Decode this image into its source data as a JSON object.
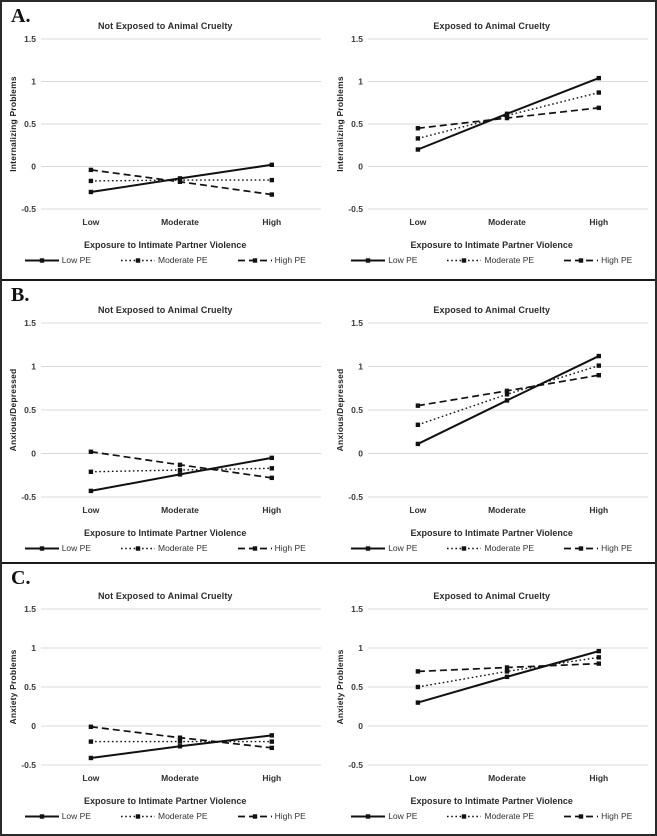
{
  "figure": {
    "sections": [
      {
        "label": "A."
      },
      {
        "label": "B."
      },
      {
        "label": "C."
      }
    ],
    "colors": {
      "line": "#111111",
      "grid": "#d9d9d9",
      "text": "#2b2b2b",
      "border": "#1a1a1a"
    },
    "legend_styles": [
      "solid",
      "dotted",
      "dashed"
    ]
  },
  "chart_data": [
    {
      "type": "line",
      "panel": "A.",
      "title": "Not Exposed to Animal Cruelty",
      "ylabel": "Internalizing Problems",
      "xlabel": "Exposure to Intimate Partner Violence",
      "categories": [
        "Low",
        "Moderate",
        "High"
      ],
      "ylim": [
        -0.5,
        1.5
      ],
      "yticks": [
        1.5,
        1,
        0.5,
        0,
        -0.5
      ],
      "grid": "horizontal",
      "legend_position": "bottom",
      "series": [
        {
          "name": "Low PE",
          "style": "solid",
          "values": [
            -0.3,
            -0.14,
            0.02
          ]
        },
        {
          "name": "Moderate PE",
          "style": "dotted",
          "values": [
            -0.17,
            -0.16,
            -0.16
          ]
        },
        {
          "name": "High PE",
          "style": "dashed",
          "values": [
            -0.04,
            -0.18,
            -0.33
          ]
        }
      ]
    },
    {
      "type": "line",
      "panel": "A.",
      "title": "Exposed to Animal Cruelty",
      "ylabel": "Internalizing Problems",
      "xlabel": "Exposure to Intimate Partner Violence",
      "categories": [
        "Low",
        "Moderate",
        "High"
      ],
      "ylim": [
        -0.5,
        1.5
      ],
      "yticks": [
        1.5,
        1,
        0.5,
        0,
        -0.5
      ],
      "grid": "horizontal",
      "legend_position": "bottom",
      "series": [
        {
          "name": "Low PE",
          "style": "solid",
          "values": [
            0.2,
            0.62,
            1.04
          ]
        },
        {
          "name": "Moderate PE",
          "style": "dotted",
          "values": [
            0.33,
            0.6,
            0.87
          ]
        },
        {
          "name": "High PE",
          "style": "dashed",
          "values": [
            0.45,
            0.57,
            0.69
          ]
        }
      ]
    },
    {
      "type": "line",
      "panel": "B.",
      "title": "Not Exposed to Animal Cruelty",
      "ylabel": "Anxious/Depressed",
      "xlabel": "Exposure to Intimate Partner Violence",
      "categories": [
        "Low",
        "Moderate",
        "High"
      ],
      "ylim": [
        -0.5,
        1.5
      ],
      "yticks": [
        1.5,
        1,
        0.5,
        0,
        -0.5
      ],
      "grid": "horizontal",
      "legend_position": "bottom",
      "series": [
        {
          "name": "Low PE",
          "style": "solid",
          "values": [
            -0.43,
            -0.24,
            -0.05
          ]
        },
        {
          "name": "Moderate PE",
          "style": "dotted",
          "values": [
            -0.21,
            -0.19,
            -0.17
          ]
        },
        {
          "name": "High PE",
          "style": "dashed",
          "values": [
            0.02,
            -0.13,
            -0.28
          ]
        }
      ]
    },
    {
      "type": "line",
      "panel": "B.",
      "title": "Exposed to Animal Cruelty",
      "ylabel": "Anxious/Depressed",
      "xlabel": "Exposure to Intimate Partner Violence",
      "categories": [
        "Low",
        "Moderate",
        "High"
      ],
      "ylim": [
        -0.5,
        1.5
      ],
      "yticks": [
        1.5,
        1,
        0.5,
        0,
        -0.5
      ],
      "grid": "horizontal",
      "legend_position": "bottom",
      "series": [
        {
          "name": "Low PE",
          "style": "solid",
          "values": [
            0.11,
            0.61,
            1.12
          ]
        },
        {
          "name": "Moderate PE",
          "style": "dotted",
          "values": [
            0.33,
            0.68,
            1.01
          ]
        },
        {
          "name": "High PE",
          "style": "dashed",
          "values": [
            0.55,
            0.72,
            0.9
          ]
        }
      ]
    },
    {
      "type": "line",
      "panel": "C.",
      "title": "Not Exposed to Animal Cruelty",
      "ylabel": "Anxiety Problems",
      "xlabel": "Exposure to Intimate Partner Violence",
      "categories": [
        "Low",
        "Moderate",
        "High"
      ],
      "ylim": [
        -0.5,
        1.5
      ],
      "yticks": [
        1.5,
        1,
        0.5,
        0,
        -0.5
      ],
      "grid": "horizontal",
      "legend_position": "bottom",
      "series": [
        {
          "name": "Low PE",
          "style": "solid",
          "values": [
            -0.41,
            -0.26,
            -0.12
          ]
        },
        {
          "name": "Moderate PE",
          "style": "dotted",
          "values": [
            -0.2,
            -0.2,
            -0.2
          ]
        },
        {
          "name": "High PE",
          "style": "dashed",
          "values": [
            -0.01,
            -0.15,
            -0.28
          ]
        }
      ]
    },
    {
      "type": "line",
      "panel": "C.",
      "title": "Exposed to Animal Cruelty",
      "ylabel": "Anxiety Problems",
      "xlabel": "Exposure to Intimate Partner Violence",
      "categories": [
        "Low",
        "Moderate",
        "High"
      ],
      "ylim": [
        -0.5,
        1.5
      ],
      "yticks": [
        1.5,
        1,
        0.5,
        0,
        -0.5
      ],
      "grid": "horizontal",
      "legend_position": "bottom",
      "series": [
        {
          "name": "Low PE",
          "style": "solid",
          "values": [
            0.3,
            0.63,
            0.96
          ]
        },
        {
          "name": "Moderate PE",
          "style": "dotted",
          "values": [
            0.5,
            0.7,
            0.88
          ]
        },
        {
          "name": "High PE",
          "style": "dashed",
          "values": [
            0.7,
            0.75,
            0.8
          ]
        }
      ]
    }
  ]
}
